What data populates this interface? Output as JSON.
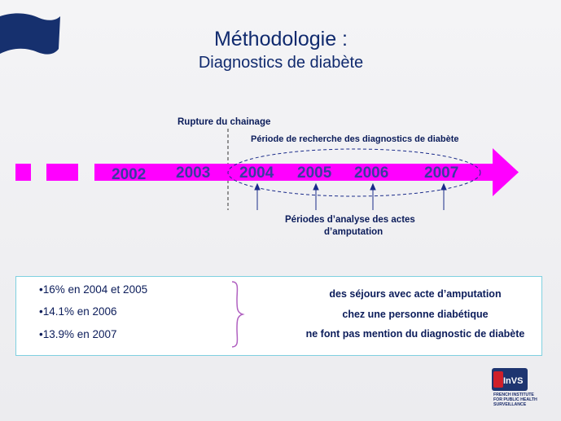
{
  "title": {
    "line1": "Méthodologie :",
    "line2": "Diagnostics de diabète"
  },
  "timeline": {
    "rupture_label": "Rupture du chainage",
    "search_period_label": "Période de recherche des diagnostics  de diabète",
    "years": [
      "2002",
      "2003",
      "2004",
      "2005",
      "2006",
      "2007"
    ],
    "analysis_label_line1": "Périodes d’analyse des actes",
    "analysis_label_line2": "d’amputation",
    "colors": {
      "arrow": "#ff00ff",
      "year_text": "#3a3aa0",
      "dashed": "#1a2b8a"
    }
  },
  "stats": {
    "bullets": [
      "•16% en 2004 et 2005",
      "•14.1% en 2006",
      "•13.9% en 2007"
    ],
    "right_lines": [
      "des séjours avec acte d’amputation",
      "chez une personne diabétique",
      "ne font pas mention du diagnostic de diabète"
    ]
  },
  "logo": {
    "short": "InVS",
    "line1": "FRENCH INSTITUTE",
    "line2": "FOR PUBLIC HEALTH",
    "line3": "SURVEILLANCE"
  }
}
